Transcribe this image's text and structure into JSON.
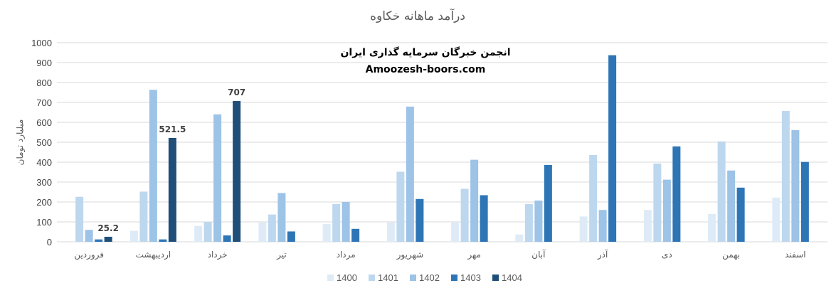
{
  "chart_data": {
    "type": "bar",
    "title": "درآمد ماهانه خکاوه",
    "ylabel": "میلیارد تومان",
    "ylim": [
      0,
      1000
    ],
    "yticks": [
      0,
      100,
      200,
      300,
      400,
      500,
      600,
      700,
      800,
      900,
      1000
    ],
    "grid": true,
    "legend_position": "bottom",
    "watermark": [
      "انجمن خبرگان سرمایه گذاری ایران",
      "Amoozesh-boors.com"
    ],
    "categories": [
      "فروردین",
      "اردیبهشت",
      "خرداد",
      "تیر",
      "مرداد",
      "شهریور",
      "مهر",
      "آبان",
      "آذر",
      "دی",
      "بهمن",
      "اسفند"
    ],
    "series": [
      {
        "name": "1400",
        "color": "#deebf7",
        "values": [
          null,
          55,
          80,
          97,
          90,
          97,
          97,
          37,
          127,
          160,
          140,
          222
        ]
      },
      {
        "name": "1401",
        "color": "#bdd7ee",
        "values": [
          226,
          252,
          100,
          137,
          190,
          352,
          266,
          190,
          436,
          393,
          504,
          657
        ]
      },
      {
        "name": "1402",
        "color": "#9dc3e6",
        "values": [
          60,
          763,
          640,
          245,
          200,
          679,
          412,
          207,
          160,
          312,
          358,
          561
        ]
      },
      {
        "name": "1403",
        "color": "#2e75b6",
        "values": [
          12,
          12,
          32,
          52,
          65,
          215,
          234,
          386,
          937,
          479,
          272,
          401
        ]
      },
      {
        "name": "1404",
        "color": "#1f4e79",
        "values": [
          25.2,
          521.5,
          707,
          null,
          null,
          null,
          null,
          null,
          null,
          null,
          null,
          null
        ]
      }
    ],
    "data_labels": [
      {
        "series": "1404",
        "category": "فروردین",
        "text": "25.2"
      },
      {
        "series": "1404",
        "category": "اردیبهشت",
        "text": "521.5"
      },
      {
        "series": "1404",
        "category": "خرداد",
        "text": "707"
      }
    ]
  }
}
